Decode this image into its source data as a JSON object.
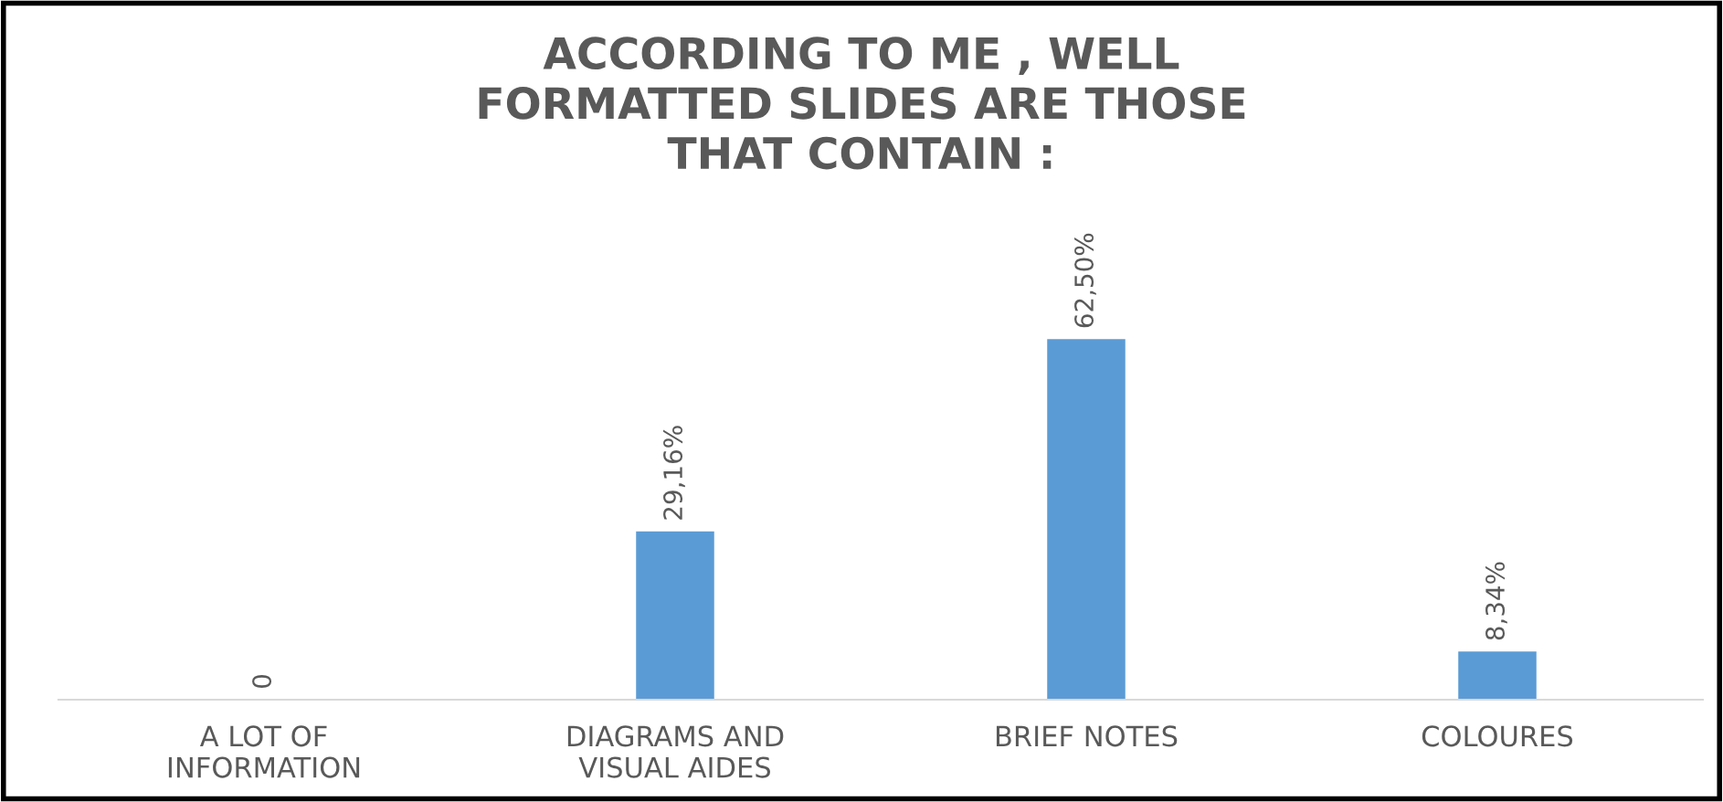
{
  "chart_data": {
    "type": "bar",
    "title": "ACCORDING TO ME , WELL\nFORMATTED SLIDES ARE THOSE\nTHAT CONTAIN :",
    "categories": [
      "A LOT OF\nINFORMATION",
      "DIAGRAMS AND\nVISUAL AIDES",
      "BRIEF NOTES",
      "COLOURES"
    ],
    "values": [
      0,
      29.16,
      62.5,
      8.34
    ],
    "value_labels": [
      "0",
      "29,16%",
      "62,50%",
      "8,34%"
    ],
    "color": "#5b9bd5"
  }
}
